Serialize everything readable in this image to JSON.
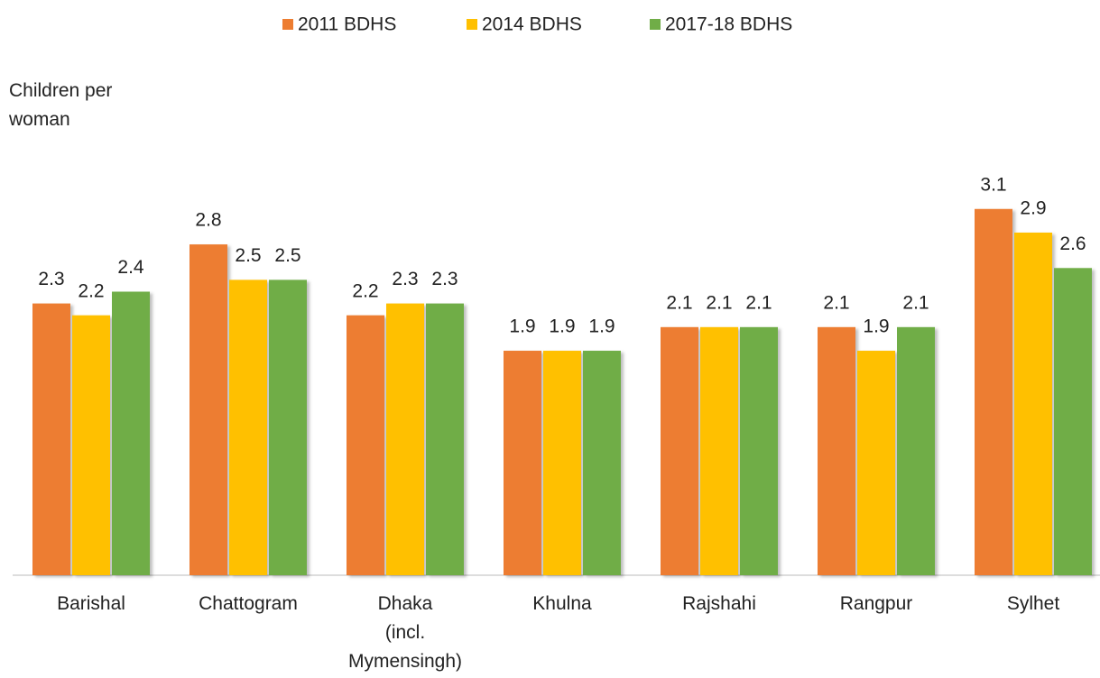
{
  "chart_data": {
    "type": "bar",
    "y_axis_label": "Children per woman",
    "categories": [
      "Barishal",
      "Chattogram",
      "Dhaka (incl. Mymensingh)",
      "Khulna",
      "Rajshahi",
      "Rangpur",
      "Sylhet"
    ],
    "series": [
      {
        "name": "2011 BDHS",
        "color": "#ED7D31",
        "values": [
          2.3,
          2.8,
          2.2,
          1.9,
          2.1,
          2.1,
          3.1
        ]
      },
      {
        "name": "2014 BDHS",
        "color": "#FFC000",
        "values": [
          2.2,
          2.5,
          2.3,
          1.9,
          2.1,
          1.9,
          2.9
        ]
      },
      {
        "name": "2017-18 BDHS",
        "color": "#70AD47",
        "values": [
          2.4,
          2.5,
          2.3,
          1.9,
          2.1,
          2.1,
          2.6
        ]
      }
    ],
    "ylim": [
      0,
      4.8
    ],
    "legend": "top"
  }
}
